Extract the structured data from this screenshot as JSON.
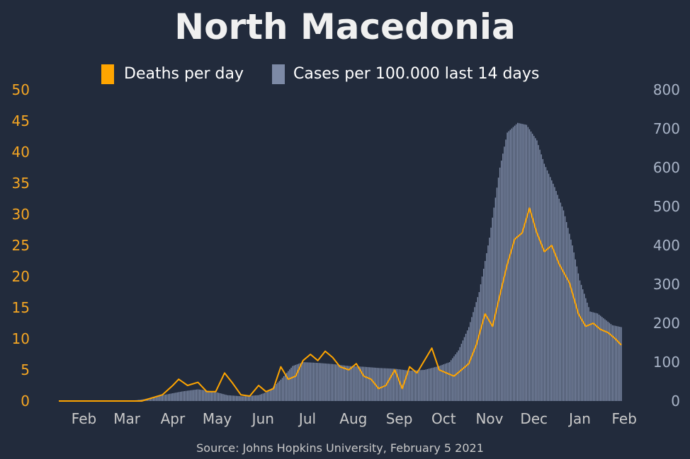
{
  "chart_data": {
    "type": "bar+line",
    "title": "North Macedonia",
    "source": "Source: Johns Hopkins University, February 5 2021",
    "legend": {
      "placement": "top-center",
      "entries": [
        {
          "label": "Deaths per day",
          "color": "#ffa500"
        },
        {
          "label": "Cases per 100.000 last 14 days",
          "color": "#7d8aa6"
        }
      ]
    },
    "y_left": {
      "ylim": [
        0,
        50
      ],
      "ticks": [
        "0",
        "5",
        "10",
        "15",
        "20",
        "25",
        "30",
        "35",
        "40",
        "45",
        "50"
      ],
      "color": "#f5a623"
    },
    "y_right": {
      "ylim": [
        0,
        800
      ],
      "ticks": [
        "0",
        "100",
        "200",
        "300",
        "400",
        "500",
        "600",
        "700",
        "800"
      ],
      "color": "#a9b4c7"
    },
    "x_axis": {
      "ticks": [
        "Feb",
        "Mar",
        "Apr",
        "May",
        "Jun",
        "Jul",
        "Aug",
        "Sep",
        "Oct",
        "Nov",
        "Dec",
        "Jan",
        "Feb"
      ],
      "start": "2020-01-22",
      "end": "2021-02-05"
    },
    "series": [
      {
        "name": "Cases per 100.000 last 14 days",
        "axis": "right",
        "kind": "bar",
        "points": [
          [
            "2020-01-22",
            0
          ],
          [
            "2020-03-10",
            0
          ],
          [
            "2020-03-20",
            5
          ],
          [
            "2020-04-01",
            15
          ],
          [
            "2020-04-15",
            25
          ],
          [
            "2020-04-25",
            30
          ],
          [
            "2020-05-05",
            25
          ],
          [
            "2020-05-15",
            15
          ],
          [
            "2020-05-25",
            12
          ],
          [
            "2020-06-05",
            15
          ],
          [
            "2020-06-12",
            25
          ],
          [
            "2020-06-20",
            55
          ],
          [
            "2020-06-28",
            90
          ],
          [
            "2020-07-05",
            100
          ],
          [
            "2020-07-15",
            98
          ],
          [
            "2020-07-25",
            95
          ],
          [
            "2020-08-05",
            90
          ],
          [
            "2020-08-15",
            88
          ],
          [
            "2020-08-25",
            85
          ],
          [
            "2020-09-05",
            83
          ],
          [
            "2020-09-15",
            78
          ],
          [
            "2020-09-25",
            80
          ],
          [
            "2020-10-05",
            90
          ],
          [
            "2020-10-12",
            100
          ],
          [
            "2020-10-18",
            130
          ],
          [
            "2020-10-25",
            190
          ],
          [
            "2020-11-01",
            280
          ],
          [
            "2020-11-08",
            420
          ],
          [
            "2020-11-15",
            600
          ],
          [
            "2020-11-20",
            690
          ],
          [
            "2020-11-27",
            715
          ],
          [
            "2020-12-03",
            710
          ],
          [
            "2020-12-10",
            670
          ],
          [
            "2020-12-15",
            610
          ],
          [
            "2020-12-22",
            550
          ],
          [
            "2020-12-28",
            490
          ],
          [
            "2021-01-03",
            400
          ],
          [
            "2021-01-08",
            310
          ],
          [
            "2021-01-15",
            230
          ],
          [
            "2021-01-20",
            225
          ],
          [
            "2021-01-25",
            210
          ],
          [
            "2021-01-30",
            195
          ],
          [
            "2021-02-05",
            190
          ]
        ]
      },
      {
        "name": "Deaths per day",
        "axis": "left",
        "kind": "line",
        "points": [
          [
            "2020-01-22",
            0
          ],
          [
            "2020-03-18",
            0
          ],
          [
            "2020-03-25",
            0.5
          ],
          [
            "2020-04-01",
            1
          ],
          [
            "2020-04-08",
            2.5
          ],
          [
            "2020-04-12",
            3.5
          ],
          [
            "2020-04-18",
            2.5
          ],
          [
            "2020-04-25",
            3
          ],
          [
            "2020-05-01",
            1.5
          ],
          [
            "2020-05-07",
            1.5
          ],
          [
            "2020-05-13",
            4.5
          ],
          [
            "2020-05-18",
            3
          ],
          [
            "2020-05-24",
            1
          ],
          [
            "2020-05-30",
            0.8
          ],
          [
            "2020-06-05",
            2.5
          ],
          [
            "2020-06-10",
            1.5
          ],
          [
            "2020-06-15",
            2
          ],
          [
            "2020-06-20",
            5.5
          ],
          [
            "2020-06-25",
            3.5
          ],
          [
            "2020-06-30",
            4
          ],
          [
            "2020-07-05",
            6.5
          ],
          [
            "2020-07-10",
            7.5
          ],
          [
            "2020-07-15",
            6.5
          ],
          [
            "2020-07-20",
            8
          ],
          [
            "2020-07-25",
            7
          ],
          [
            "2020-07-30",
            5.5
          ],
          [
            "2020-08-05",
            5
          ],
          [
            "2020-08-10",
            6
          ],
          [
            "2020-08-15",
            4
          ],
          [
            "2020-08-20",
            3.5
          ],
          [
            "2020-08-25",
            2
          ],
          [
            "2020-08-30",
            2.5
          ],
          [
            "2020-09-05",
            5
          ],
          [
            "2020-09-10",
            2
          ],
          [
            "2020-09-15",
            5.5
          ],
          [
            "2020-09-20",
            4.5
          ],
          [
            "2020-09-25",
            6.5
          ],
          [
            "2020-09-30",
            8.5
          ],
          [
            "2020-10-05",
            5
          ],
          [
            "2020-10-10",
            4.5
          ],
          [
            "2020-10-15",
            4
          ],
          [
            "2020-10-20",
            5
          ],
          [
            "2020-10-25",
            6
          ],
          [
            "2020-10-30",
            9
          ],
          [
            "2020-11-05",
            14
          ],
          [
            "2020-11-10",
            12
          ],
          [
            "2020-11-15",
            17
          ],
          [
            "2020-11-20",
            22
          ],
          [
            "2020-11-25",
            26
          ],
          [
            "2020-11-30",
            27
          ],
          [
            "2020-12-05",
            31
          ],
          [
            "2020-12-10",
            27
          ],
          [
            "2020-12-15",
            24
          ],
          [
            "2020-12-20",
            25
          ],
          [
            "2020-12-25",
            22
          ],
          [
            "2021-01-01",
            19
          ],
          [
            "2021-01-07",
            14
          ],
          [
            "2021-01-12",
            12
          ],
          [
            "2021-01-17",
            12.5
          ],
          [
            "2021-01-22",
            11.5
          ],
          [
            "2021-01-27",
            11
          ],
          [
            "2021-02-01",
            10
          ],
          [
            "2021-02-05",
            9
          ]
        ]
      }
    ]
  }
}
